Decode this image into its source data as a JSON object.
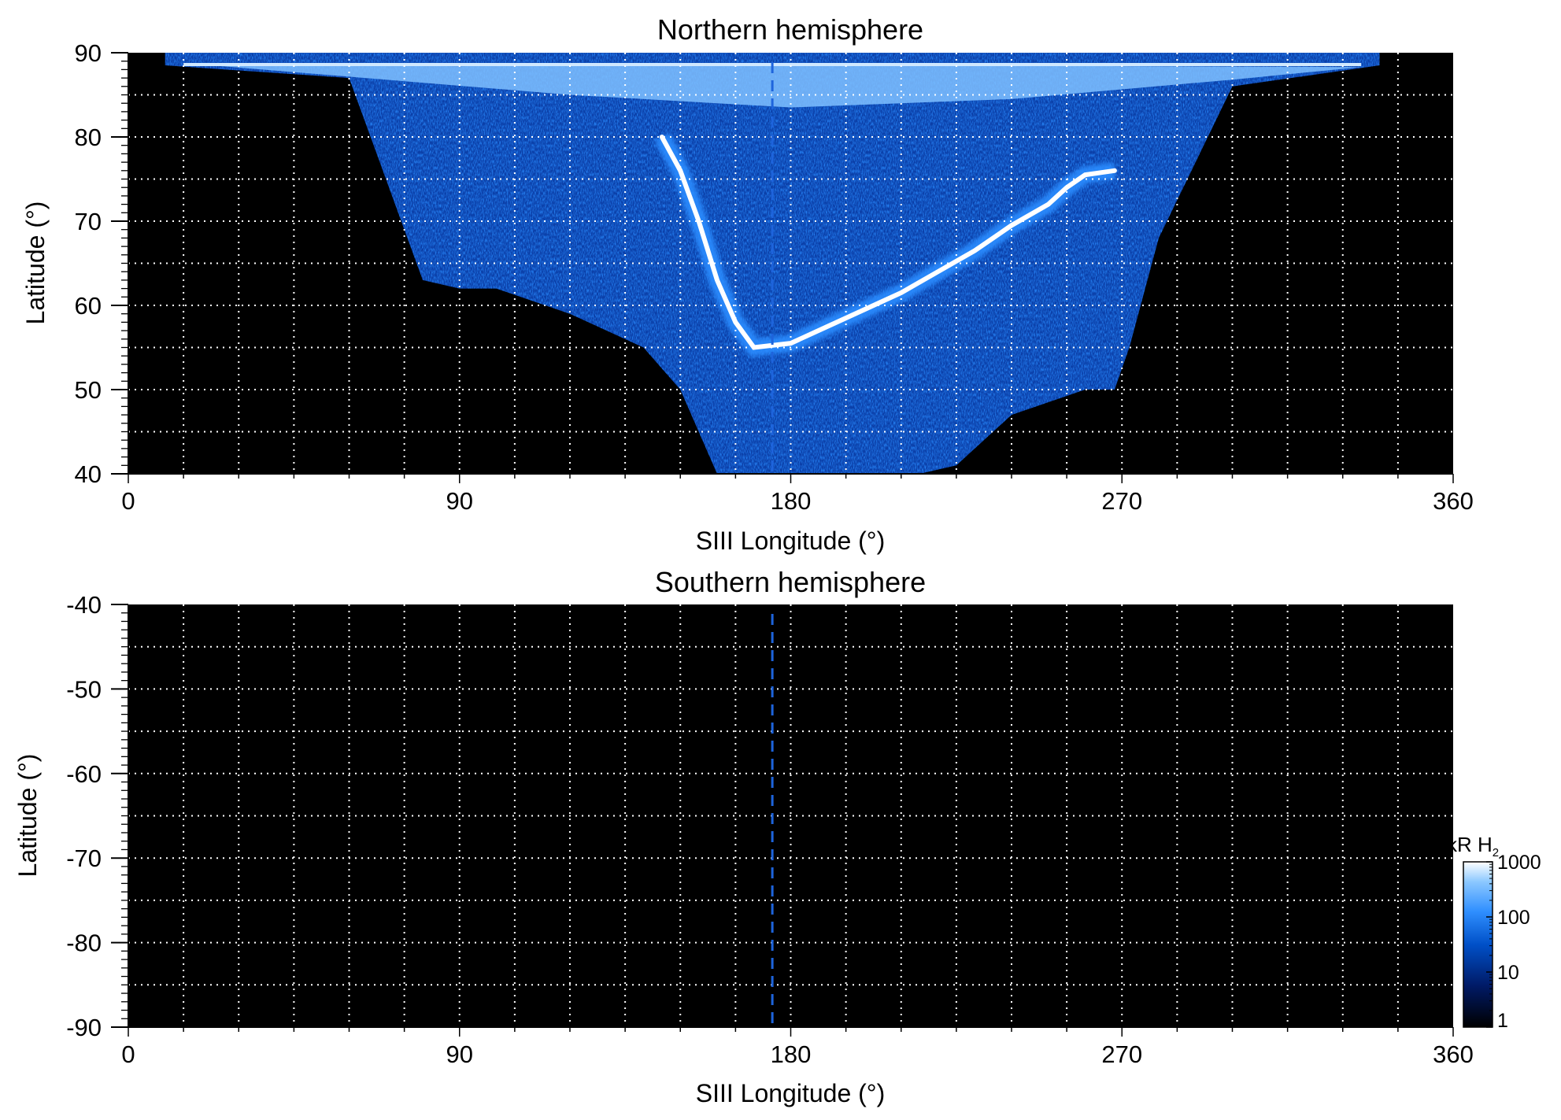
{
  "chart_data": [
    {
      "type": "heatmap",
      "title": "Northern hemisphere",
      "xlabel": "SIII Longitude (°)",
      "ylabel": "Latitude (°)",
      "xlim": [
        0,
        360
      ],
      "ylim": [
        40,
        90
      ],
      "xticks": [
        0,
        90,
        180,
        270,
        360
      ],
      "xtick_labels": [
        "0",
        "90",
        "180",
        "270",
        "360"
      ],
      "yticks": [
        40,
        50,
        60,
        70,
        80,
        90
      ],
      "ytick_labels": [
        "40",
        "50",
        "60",
        "70",
        "80",
        "90"
      ],
      "grid": true,
      "reference_line_longitude": 175,
      "coverage_lower_latitude_boundary": {
        "longitude": [
          10,
          60,
          80,
          90,
          100,
          120,
          140,
          150,
          160,
          170,
          180,
          200,
          215,
          225,
          240,
          260,
          268,
          272,
          280,
          300,
          340
        ],
        "latitude": [
          88.5,
          87,
          63,
          62,
          62,
          59,
          55,
          50,
          40,
          40,
          40,
          40,
          40,
          41,
          47,
          50,
          50,
          55,
          68,
          86,
          88.5
        ]
      },
      "main_oval": {
        "longitude": [
          145,
          150,
          155,
          160,
          165,
          170,
          180,
          190,
          200,
          210,
          220,
          230,
          240,
          250,
          255,
          260,
          268
        ],
        "latitude": [
          80,
          76,
          70,
          63,
          58,
          55,
          55.5,
          57.5,
          59.5,
          61.5,
          64,
          66.5,
          69.5,
          72,
          74,
          75.5,
          76
        ]
      },
      "brightness_range_kR": [
        1,
        1000
      ]
    },
    {
      "type": "heatmap",
      "title": "Southern hemisphere",
      "xlabel": "SIII Longitude (°)",
      "ylabel": "Latitude (°)",
      "xlim": [
        0,
        360
      ],
      "ylim": [
        -90,
        -40
      ],
      "xticks": [
        0,
        90,
        180,
        270,
        360
      ],
      "xtick_labels": [
        "0",
        "90",
        "180",
        "270",
        "360"
      ],
      "yticks": [
        -40,
        -50,
        -60,
        -70,
        -80,
        -90
      ],
      "ytick_labels": [
        "-40",
        "-50",
        "-60",
        "-70",
        "-80",
        "-90"
      ],
      "grid": true,
      "reference_line_longitude": 175,
      "coverage": "none"
    }
  ],
  "colorbar": {
    "label_main": "kR H",
    "label_sub": "2",
    "scale": "log",
    "range": [
      1,
      1000
    ],
    "ticks": [
      1,
      10,
      100,
      1000
    ],
    "tick_labels": [
      "1",
      "10",
      "100",
      "1000"
    ],
    "colors": [
      "#000000",
      "#001a66",
      "#0050c8",
      "#2f8fff",
      "#8cc8ff",
      "#ffffff"
    ]
  },
  "colors": {
    "background": "#000000",
    "grid": "#ffffff",
    "reference_line": "#1e64dc",
    "emission_low": "#0b3fa8",
    "emission_mid": "#2a8cff",
    "emission_high": "#ffffff"
  }
}
